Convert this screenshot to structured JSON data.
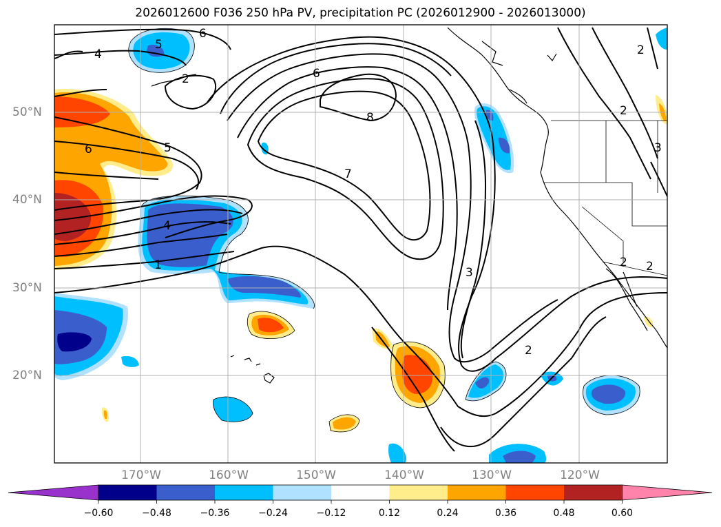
{
  "title": "2026012600 F036 250 hPa PV, precipitation PC (2026012900 - 2026013000)",
  "map": {
    "region": "North Pacific / western North America",
    "projection": "equirectangular",
    "lon_range": [
      -180,
      -110
    ],
    "lat_range": [
      10,
      60
    ],
    "gridlines": true,
    "lon_labels": [
      "170°W",
      "160°W",
      "150°W",
      "140°W",
      "130°W",
      "120°W"
    ],
    "lat_labels": [
      "50°N",
      "40°N",
      "30°N",
      "20°N"
    ],
    "pv_contour_labels": [
      {
        "id": "pv-label-6a",
        "text": "6"
      },
      {
        "id": "pv-label-5a",
        "text": "5"
      },
      {
        "id": "pv-label-4a",
        "text": "4"
      },
      {
        "id": "pv-label-2a",
        "text": "2"
      },
      {
        "id": "pv-label-6b",
        "text": "6"
      },
      {
        "id": "pv-label-5b",
        "text": "5"
      },
      {
        "id": "pv-label-6c",
        "text": "6"
      },
      {
        "id": "pv-label-8",
        "text": "8"
      },
      {
        "id": "pv-label-7",
        "text": "7"
      },
      {
        "id": "pv-label-4b",
        "text": "4"
      },
      {
        "id": "pv-label-1",
        "text": "1"
      },
      {
        "id": "pv-label-3",
        "text": "3"
      },
      {
        "id": "pv-label-2b",
        "text": "2"
      },
      {
        "id": "pv-label-2c",
        "text": "2"
      },
      {
        "id": "pv-label-2d",
        "text": "2"
      },
      {
        "id": "pv-label-3b",
        "text": "3"
      },
      {
        "id": "pv-label-2e",
        "text": "2"
      },
      {
        "id": "pv-label-2f",
        "text": "2"
      }
    ]
  },
  "colorbar": {
    "levels": [
      "−0.60",
      "−0.48",
      "−0.36",
      "−0.24",
      "−0.12",
      "0.12",
      "0.24",
      "0.36",
      "0.48",
      "0.60"
    ],
    "colors": [
      "#9932CC",
      "#00008B",
      "#3A5FCD",
      "#00BFFF",
      "#B0E2FF",
      "#FFFFFF",
      "#FFEC8B",
      "#FFA500",
      "#FF4500",
      "#B22222",
      "#FF83AA"
    ],
    "extend": "both"
  }
}
